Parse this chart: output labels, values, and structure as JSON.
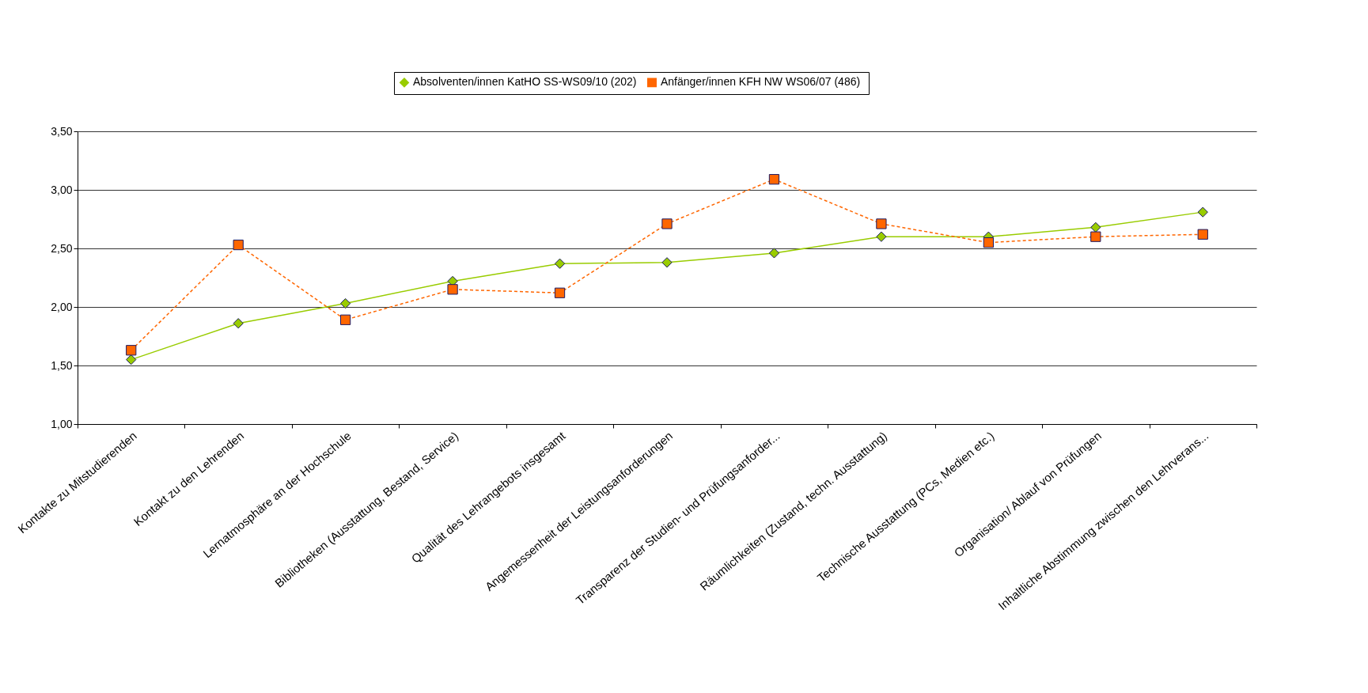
{
  "chart_data": {
    "type": "line",
    "categories": [
      "Kontakte zu Mitstudierenden",
      "Kontakt zu den Lehrenden",
      "Lernatmosphäre an der Hochschule",
      "Bibliotheken (Ausstattung, Bestand, Service)",
      "Qualität des Lehrangebots insgesamt",
      "Angemessenheit der Leistungsanforderungen",
      "Transparenz der Studien- und Prüfungsanforder...",
      "Räumlichkeiten (Zustand, techn. Ausstattung)",
      "Technische Ausstattung (PCs, Medien etc.)",
      "Organisation/ Ablauf von Prüfungen",
      "Inhaltliche Abstimmung zwischen den Lehrverans..."
    ],
    "series": [
      {
        "name": "Absolventen/innen KatHO SS-WS09/10 (202)",
        "color": "#99cc00",
        "marker": "diamond",
        "line_style": "solid",
        "values": [
          1.55,
          1.86,
          2.03,
          2.22,
          2.37,
          2.38,
          2.46,
          2.6,
          2.6,
          2.68,
          2.81
        ]
      },
      {
        "name": "Anfänger/innen KFH NW WS06/07  (486)",
        "color": "#ff6600",
        "marker": "square",
        "line_style": "dashed",
        "values": [
          1.63,
          2.53,
          1.89,
          2.15,
          2.12,
          2.71,
          3.09,
          2.71,
          2.55,
          2.6,
          2.62
        ]
      }
    ],
    "ylim": [
      1,
      3.5
    ],
    "yticks": [
      {
        "value": 1,
        "label": "1,00"
      },
      {
        "value": 1.5,
        "label": "1,50"
      },
      {
        "value": 2,
        "label": "2,00"
      },
      {
        "value": 2.5,
        "label": "2,50"
      },
      {
        "value": 3,
        "label": "3,00"
      },
      {
        "value": 3.5,
        "label": "3,50"
      }
    ],
    "grid": "y",
    "legend": "top"
  }
}
